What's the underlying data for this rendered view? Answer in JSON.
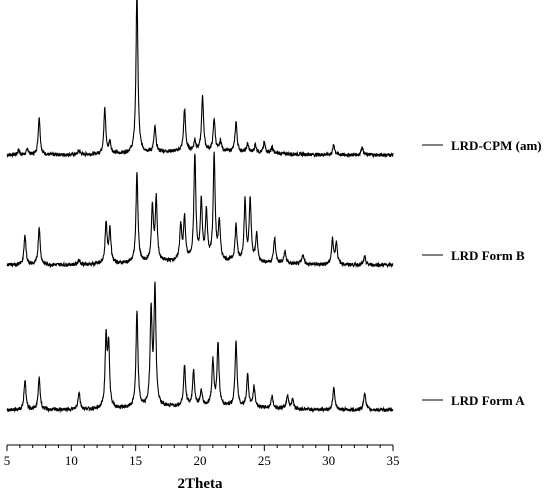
{
  "chart_data": {
    "type": "line",
    "title": "",
    "xlabel": "2Theta",
    "ylabel": "",
    "xlim": [
      5,
      35
    ],
    "x_ticks": [
      "5",
      "10",
      "15",
      "20",
      "25",
      "30",
      "35"
    ],
    "grid": false,
    "legend_placement": "right",
    "series": [
      {
        "name": "LRD-CPM (am)",
        "color": "#000000",
        "peaks": [
          [
            5.9,
            0.05
          ],
          [
            6.6,
            0.06
          ],
          [
            7.5,
            0.38
          ],
          [
            10.6,
            0.04
          ],
          [
            12.6,
            0.45
          ],
          [
            13.0,
            0.12
          ],
          [
            15.1,
            1.6
          ],
          [
            16.5,
            0.25
          ],
          [
            18.8,
            0.42
          ],
          [
            19.6,
            0.1
          ],
          [
            20.2,
            0.55
          ],
          [
            21.1,
            0.32
          ],
          [
            21.6,
            0.1
          ],
          [
            22.8,
            0.3
          ],
          [
            23.7,
            0.08
          ],
          [
            24.3,
            0.08
          ],
          [
            25.0,
            0.1
          ],
          [
            25.6,
            0.06
          ],
          [
            30.4,
            0.1
          ],
          [
            32.6,
            0.08
          ]
        ]
      },
      {
        "name": "LRD Form B",
        "color": "#000000",
        "peaks": [
          [
            6.4,
            0.3
          ],
          [
            7.5,
            0.38
          ],
          [
            10.6,
            0.05
          ],
          [
            12.7,
            0.4
          ],
          [
            13.0,
            0.35
          ],
          [
            15.1,
            0.9
          ],
          [
            16.3,
            0.55
          ],
          [
            16.6,
            0.62
          ],
          [
            18.5,
            0.35
          ],
          [
            18.8,
            0.42
          ],
          [
            19.6,
            1.05
          ],
          [
            20.1,
            0.58
          ],
          [
            20.5,
            0.48
          ],
          [
            21.1,
            1.05
          ],
          [
            21.5,
            0.38
          ],
          [
            22.8,
            0.36
          ],
          [
            23.5,
            0.6
          ],
          [
            23.9,
            0.62
          ],
          [
            24.4,
            0.28
          ],
          [
            25.8,
            0.25
          ],
          [
            26.6,
            0.12
          ],
          [
            28.0,
            0.1
          ],
          [
            30.3,
            0.25
          ],
          [
            30.6,
            0.22
          ],
          [
            32.8,
            0.08
          ]
        ]
      },
      {
        "name": "LRD Form A",
        "color": "#000000",
        "peaks": [
          [
            6.4,
            0.3
          ],
          [
            7.5,
            0.32
          ],
          [
            10.6,
            0.18
          ],
          [
            12.7,
            0.68
          ],
          [
            12.9,
            0.6
          ],
          [
            15.1,
            0.95
          ],
          [
            16.2,
            0.95
          ],
          [
            16.5,
            1.18
          ],
          [
            18.8,
            0.4
          ],
          [
            19.5,
            0.35
          ],
          [
            20.1,
            0.15
          ],
          [
            21.0,
            0.45
          ],
          [
            21.4,
            0.62
          ],
          [
            22.8,
            0.65
          ],
          [
            23.7,
            0.32
          ],
          [
            24.2,
            0.2
          ],
          [
            25.6,
            0.12
          ],
          [
            26.8,
            0.14
          ],
          [
            27.2,
            0.1
          ],
          [
            30.4,
            0.22
          ],
          [
            32.8,
            0.18
          ]
        ]
      }
    ]
  }
}
